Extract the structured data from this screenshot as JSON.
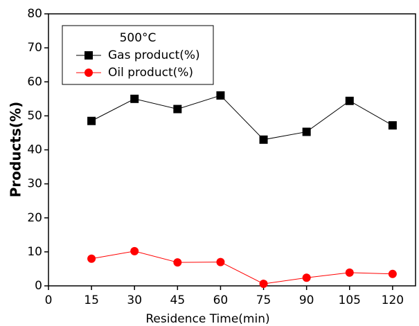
{
  "chart_data": {
    "type": "line",
    "x_label": "Residence Time(min)",
    "y_label": "Products(%)",
    "legend_title": "500°C",
    "x": [
      15,
      30,
      45,
      60,
      75,
      90,
      105,
      120
    ],
    "series": [
      {
        "name": "Gas product(%)",
        "color": "#000000",
        "marker": "square",
        "values": [
          48.5,
          55,
          52,
          56,
          43,
          45.3,
          54.4,
          47.2
        ]
      },
      {
        "name": "Oil product(%)",
        "color": "#ff0000",
        "marker": "circle",
        "values": [
          8,
          10.2,
          6.9,
          7,
          0.6,
          2.4,
          3.9,
          3.5
        ]
      }
    ],
    "xlim": [
      0,
      128
    ],
    "xticks": [
      0,
      15,
      30,
      45,
      60,
      75,
      90,
      105,
      120
    ],
    "ylim": [
      0,
      80
    ],
    "yticks": [
      0,
      10,
      20,
      30,
      40,
      50,
      60,
      70,
      80
    ],
    "legend_position": "upper-left"
  }
}
